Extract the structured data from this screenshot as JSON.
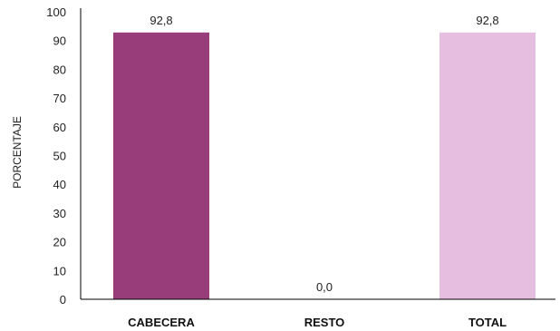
{
  "chart_data": {
    "type": "bar",
    "categories": [
      "CABECERA",
      "RESTO",
      "TOTAL"
    ],
    "values": [
      92.8,
      0.0,
      92.8
    ],
    "data_labels": [
      "92,8",
      "0,0",
      "92,8"
    ],
    "bar_colors": [
      "#993c7a",
      "#993c7a",
      "#e6bfe0"
    ],
    "ylabel": "PORCENTAJE",
    "xlabel": "",
    "ylim": [
      0,
      100
    ],
    "yticks": [
      0,
      10,
      20,
      30,
      40,
      50,
      60,
      70,
      80,
      90,
      100
    ],
    "ytick_labels": [
      "0",
      "10",
      "20",
      "30",
      "40",
      "50",
      "60",
      "70",
      "80",
      "90",
      "100"
    ],
    "grid": false,
    "legend": "none"
  }
}
